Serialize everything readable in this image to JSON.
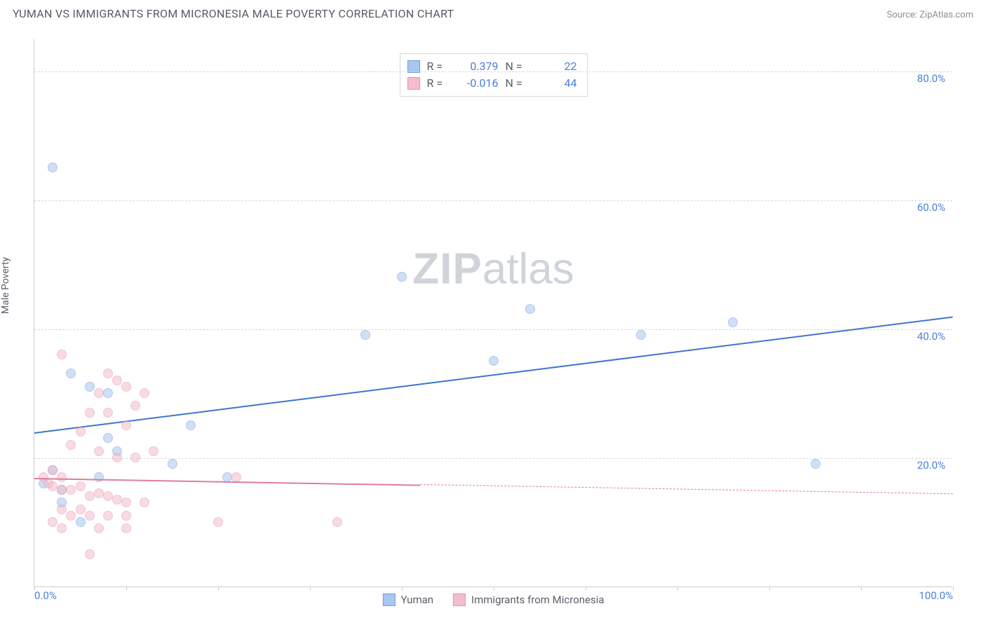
{
  "title": "YUMAN VS IMMIGRANTS FROM MICRONESIA MALE POVERTY CORRELATION CHART",
  "source": "Source: ZipAtlas.com",
  "watermark_zip": "ZIP",
  "watermark_atlas": "atlas",
  "ylabel": "Male Poverty",
  "chart": {
    "type": "scatter",
    "xlim": [
      0,
      100
    ],
    "ylim": [
      0,
      85
    ],
    "ytick_values": [
      20,
      40,
      60,
      80
    ],
    "ytick_labels": [
      "20.0%",
      "40.0%",
      "60.0%",
      "80.0%"
    ],
    "xtick_values": [
      0,
      10,
      20,
      30,
      40,
      50,
      60,
      70,
      80,
      90,
      100
    ],
    "xtick_labels_shown": {
      "0": "0.0%",
      "100": "100.0%"
    },
    "background_color": "#ffffff",
    "grid_color": "#d5d8de",
    "axis_color": "#c9ccd2",
    "tick_label_color": "#4a7fd6",
    "marker_size": 14,
    "marker_opacity": 0.55,
    "series": [
      {
        "name": "Yuman",
        "fill": "#a9c6ee",
        "stroke": "#6f9fe0",
        "points": [
          [
            2,
            65
          ],
          [
            4,
            33
          ],
          [
            6,
            31
          ],
          [
            8,
            30
          ],
          [
            8,
            23
          ],
          [
            9,
            21
          ],
          [
            7,
            17
          ],
          [
            2,
            18
          ],
          [
            1,
            16
          ],
          [
            3,
            15
          ],
          [
            3,
            13
          ],
          [
            5,
            10
          ],
          [
            15,
            19
          ],
          [
            17,
            25
          ],
          [
            21,
            17
          ],
          [
            36,
            39
          ],
          [
            40,
            48
          ],
          [
            50,
            35
          ],
          [
            54,
            43
          ],
          [
            66,
            39
          ],
          [
            76,
            41
          ],
          [
            85,
            19
          ]
        ],
        "trend": {
          "x1": 0,
          "y1": 24,
          "x2": 100,
          "y2": 42,
          "color": "#3f74d1",
          "dash_after_x": null
        }
      },
      {
        "name": "Immigrants from Micronesia",
        "fill": "#f4bccc",
        "stroke": "#e595af",
        "points": [
          [
            3,
            36
          ],
          [
            8,
            33
          ],
          [
            9,
            32
          ],
          [
            7,
            30
          ],
          [
            10,
            31
          ],
          [
            12,
            30
          ],
          [
            6,
            27
          ],
          [
            8,
            27
          ],
          [
            11,
            28
          ],
          [
            10,
            25
          ],
          [
            5,
            24
          ],
          [
            4,
            22
          ],
          [
            7,
            21
          ],
          [
            9,
            20
          ],
          [
            11,
            20
          ],
          [
            13,
            21
          ],
          [
            2,
            18
          ],
          [
            3,
            17
          ],
          [
            1,
            17
          ],
          [
            1.5,
            16
          ],
          [
            2,
            15.5
          ],
          [
            3,
            15
          ],
          [
            4,
            15
          ],
          [
            5,
            15.5
          ],
          [
            6,
            14
          ],
          [
            7,
            14.5
          ],
          [
            8,
            14
          ],
          [
            9,
            13.5
          ],
          [
            10,
            13
          ],
          [
            5,
            12
          ],
          [
            3,
            12
          ],
          [
            4,
            11
          ],
          [
            6,
            11
          ],
          [
            8,
            11
          ],
          [
            10,
            11
          ],
          [
            12,
            13
          ],
          [
            2,
            10
          ],
          [
            3,
            9
          ],
          [
            7,
            9
          ],
          [
            10,
            9
          ],
          [
            20,
            10
          ],
          [
            6,
            5
          ],
          [
            33,
            10
          ],
          [
            22,
            17
          ]
        ],
        "trend": {
          "x1": 0,
          "y1": 17,
          "x2": 100,
          "y2": 14.5,
          "color": "#e07d9c",
          "dash_after_x": 42
        }
      }
    ]
  },
  "r_legend": [
    {
      "swatch_fill": "#a9c6ee",
      "swatch_stroke": "#6f9fe0",
      "r_label": "R =",
      "r_value": "0.379",
      "n_label": "N =",
      "n_value": "22"
    },
    {
      "swatch_fill": "#f4bccc",
      "swatch_stroke": "#e595af",
      "r_label": "R =",
      "r_value": "-0.016",
      "n_label": "N =",
      "n_value": "44"
    }
  ],
  "bottom_legend": [
    {
      "swatch_fill": "#a9c6ee",
      "swatch_stroke": "#6f9fe0",
      "label": "Yuman"
    },
    {
      "swatch_fill": "#f4bccc",
      "swatch_stroke": "#e595af",
      "label": "Immigrants from Micronesia"
    }
  ]
}
